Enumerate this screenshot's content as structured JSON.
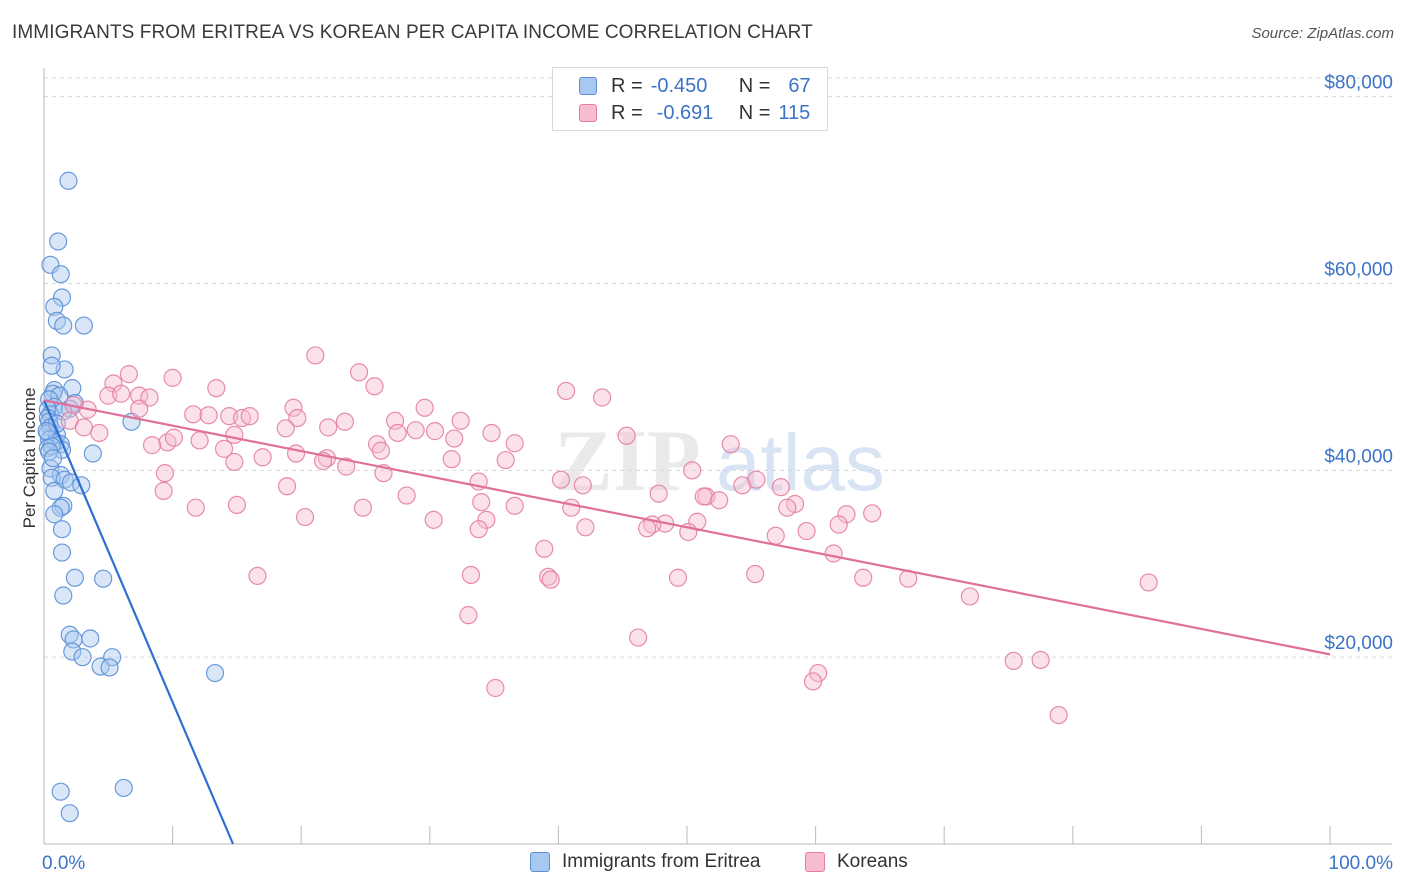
{
  "header": {
    "title": "IMMIGRANTS FROM ERITREA VS KOREAN PER CAPITA INCOME CORRELATION CHART",
    "source": "Source: ZipAtlas.com"
  },
  "legend": {
    "series1": {
      "r_label": "R =",
      "r_value": "-0.450",
      "n_label": "N =",
      "n_value": "67"
    },
    "series2": {
      "r_label": "R =",
      "r_value": "-0.691",
      "n_label": "N =",
      "n_value": "115"
    }
  },
  "colors": {
    "blue_fill": "#a9c8f0",
    "blue_stroke": "#5b8fd6",
    "blue_line": "#2f6fd0",
    "pink_fill": "#f7bcd0",
    "pink_stroke": "#e47fa2",
    "pink_line": "#e0709a",
    "axis_text": "#3b73c8",
    "grid": "#d8d8d8"
  },
  "watermark": {
    "zip": "ZIP",
    "atlas": "atlas"
  },
  "chart_data": {
    "type": "scatter",
    "title": "IMMIGRANTS FROM ERITREA VS KOREAN PER CAPITA INCOME CORRELATION CHART",
    "xlabel": "",
    "ylabel": "Per Capita Income",
    "xlim": [
      0,
      100
    ],
    "ylim": [
      0,
      82000
    ],
    "x_tick_labels": [
      "0.0%",
      "100.0%"
    ],
    "y_ticks": [
      20000,
      40000,
      60000,
      80000
    ],
    "y_tick_labels": [
      "$20,000",
      "$40,000",
      "$60,000",
      "$80,000"
    ],
    "grid": true,
    "legend_position": "top-center",
    "series": [
      {
        "name": "Immigrants from Eritrea",
        "color": "#a9c8f0",
        "trend": {
          "x": [
            0,
            14.7
          ],
          "y": [
            47500,
            0
          ]
        },
        "points": [
          [
            1.9,
            71000
          ],
          [
            1.1,
            64500
          ],
          [
            0.5,
            62000
          ],
          [
            1.3,
            61000
          ],
          [
            1.4,
            58500
          ],
          [
            0.8,
            57500
          ],
          [
            1.0,
            56000
          ],
          [
            1.5,
            55500
          ],
          [
            3.1,
            55500
          ],
          [
            0.6,
            52300
          ],
          [
            1.6,
            50800
          ],
          [
            0.6,
            51200
          ],
          [
            0.8,
            48600
          ],
          [
            2.2,
            48800
          ],
          [
            0.7,
            48200
          ],
          [
            1.2,
            48000
          ],
          [
            0.4,
            47600
          ],
          [
            2.4,
            47200
          ],
          [
            0.8,
            46800
          ],
          [
            0.3,
            46500
          ],
          [
            2.0,
            46600
          ],
          [
            0.5,
            46000
          ],
          [
            1.5,
            46300
          ],
          [
            0.3,
            45600
          ],
          [
            0.4,
            45200
          ],
          [
            6.8,
            45200
          ],
          [
            0.5,
            44600
          ],
          [
            0.3,
            44000
          ],
          [
            1.0,
            43800
          ],
          [
            0.4,
            43300
          ],
          [
            0.9,
            43000
          ],
          [
            1.3,
            42800
          ],
          [
            0.3,
            42400
          ],
          [
            1.4,
            42200
          ],
          [
            0.6,
            42600
          ],
          [
            3.8,
            41800
          ],
          [
            0.5,
            40200
          ],
          [
            1.3,
            39500
          ],
          [
            0.6,
            39200
          ],
          [
            1.6,
            39000
          ],
          [
            2.1,
            38700
          ],
          [
            2.9,
            38400
          ],
          [
            0.8,
            37800
          ],
          [
            1.5,
            36200
          ],
          [
            1.3,
            36000
          ],
          [
            0.8,
            35300
          ],
          [
            1.4,
            33700
          ],
          [
            1.4,
            31200
          ],
          [
            2.4,
            28500
          ],
          [
            4.6,
            28400
          ],
          [
            1.5,
            26600
          ],
          [
            2.0,
            22400
          ],
          [
            3.6,
            22000
          ],
          [
            2.3,
            21900
          ],
          [
            2.2,
            20600
          ],
          [
            3.0,
            20000
          ],
          [
            5.3,
            20000
          ],
          [
            4.4,
            19000
          ],
          [
            5.1,
            18900
          ],
          [
            13.3,
            18300
          ],
          [
            1.3,
            5600
          ],
          [
            6.2,
            6000
          ],
          [
            2.0,
            3300
          ],
          [
            0.4,
            42000
          ],
          [
            1.0,
            45000
          ],
          [
            0.2,
            44200
          ],
          [
            0.7,
            41300
          ]
        ]
      },
      {
        "name": "Koreans",
        "color": "#f7bcd0",
        "trend": {
          "x": [
            0,
            100
          ],
          "y": [
            47500,
            20300
          ]
        },
        "points": [
          [
            21.1,
            52300
          ],
          [
            24.5,
            50500
          ],
          [
            6.6,
            50300
          ],
          [
            10.0,
            49900
          ],
          [
            25.7,
            49000
          ],
          [
            5.4,
            49300
          ],
          [
            13.4,
            48800
          ],
          [
            5.0,
            48000
          ],
          [
            7.4,
            48000
          ],
          [
            8.2,
            47800
          ],
          [
            6.0,
            48200
          ],
          [
            40.6,
            48500
          ],
          [
            43.4,
            47800
          ],
          [
            2.3,
            47000
          ],
          [
            3.4,
            46500
          ],
          [
            7.4,
            46600
          ],
          [
            19.4,
            46700
          ],
          [
            29.6,
            46700
          ],
          [
            11.6,
            46000
          ],
          [
            12.8,
            45900
          ],
          [
            14.4,
            45800
          ],
          [
            15.4,
            45600
          ],
          [
            16.0,
            45800
          ],
          [
            19.7,
            45600
          ],
          [
            23.4,
            45200
          ],
          [
            27.3,
            45300
          ],
          [
            32.4,
            45300
          ],
          [
            2.0,
            45300
          ],
          [
            3.1,
            44600
          ],
          [
            4.3,
            44000
          ],
          [
            18.8,
            44500
          ],
          [
            14.8,
            43800
          ],
          [
            22.1,
            44600
          ],
          [
            27.5,
            44000
          ],
          [
            28.9,
            44300
          ],
          [
            30.4,
            44200
          ],
          [
            31.9,
            43400
          ],
          [
            34.8,
            44000
          ],
          [
            9.6,
            43000
          ],
          [
            10.1,
            43500
          ],
          [
            12.1,
            43200
          ],
          [
            25.9,
            42800
          ],
          [
            36.6,
            42900
          ],
          [
            45.3,
            43700
          ],
          [
            53.4,
            42800
          ],
          [
            8.4,
            42700
          ],
          [
            14.0,
            42300
          ],
          [
            26.2,
            42100
          ],
          [
            17.0,
            41400
          ],
          [
            19.6,
            41800
          ],
          [
            22.0,
            41300
          ],
          [
            31.7,
            41200
          ],
          [
            21.7,
            41000
          ],
          [
            23.5,
            40400
          ],
          [
            35.9,
            41100
          ],
          [
            14.8,
            40900
          ],
          [
            40.2,
            39000
          ],
          [
            50.4,
            40000
          ],
          [
            51.5,
            37200
          ],
          [
            9.4,
            39700
          ],
          [
            18.9,
            38300
          ],
          [
            26.4,
            39700
          ],
          [
            33.8,
            38800
          ],
          [
            41.9,
            38400
          ],
          [
            47.8,
            37500
          ],
          [
            51.3,
            37200
          ],
          [
            54.3,
            38400
          ],
          [
            55.4,
            39000
          ],
          [
            9.3,
            37800
          ],
          [
            15.0,
            36300
          ],
          [
            28.2,
            37300
          ],
          [
            34.0,
            36600
          ],
          [
            52.5,
            36800
          ],
          [
            58.4,
            36400
          ],
          [
            11.8,
            36000
          ],
          [
            24.8,
            36000
          ],
          [
            36.6,
            36200
          ],
          [
            41.0,
            36000
          ],
          [
            57.8,
            36000
          ],
          [
            59.3,
            33500
          ],
          [
            62.4,
            35300
          ],
          [
            20.3,
            35000
          ],
          [
            30.3,
            34700
          ],
          [
            34.4,
            34700
          ],
          [
            50.8,
            34500
          ],
          [
            48.3,
            34300
          ],
          [
            47.3,
            34200
          ],
          [
            46.9,
            33800
          ],
          [
            42.1,
            33900
          ],
          [
            50.1,
            33400
          ],
          [
            33.8,
            33700
          ],
          [
            56.9,
            33000
          ],
          [
            38.9,
            31600
          ],
          [
            61.8,
            34200
          ],
          [
            61.4,
            31100
          ],
          [
            55.3,
            28900
          ],
          [
            16.6,
            28700
          ],
          [
            33.2,
            28800
          ],
          [
            39.2,
            28600
          ],
          [
            39.4,
            28300
          ],
          [
            49.3,
            28500
          ],
          [
            63.7,
            28500
          ],
          [
            67.2,
            28400
          ],
          [
            72.0,
            26500
          ],
          [
            85.9,
            28000
          ],
          [
            33.0,
            24500
          ],
          [
            46.2,
            22100
          ],
          [
            60.2,
            18300
          ],
          [
            59.8,
            17400
          ],
          [
            75.4,
            19600
          ],
          [
            77.5,
            19700
          ],
          [
            35.1,
            16700
          ],
          [
            64.4,
            35400
          ],
          [
            57.3,
            38200
          ],
          [
            78.9,
            13800
          ]
        ]
      }
    ]
  },
  "bottom_legend": {
    "series1": "Immigrants from Eritrea",
    "series2": "Koreans"
  }
}
